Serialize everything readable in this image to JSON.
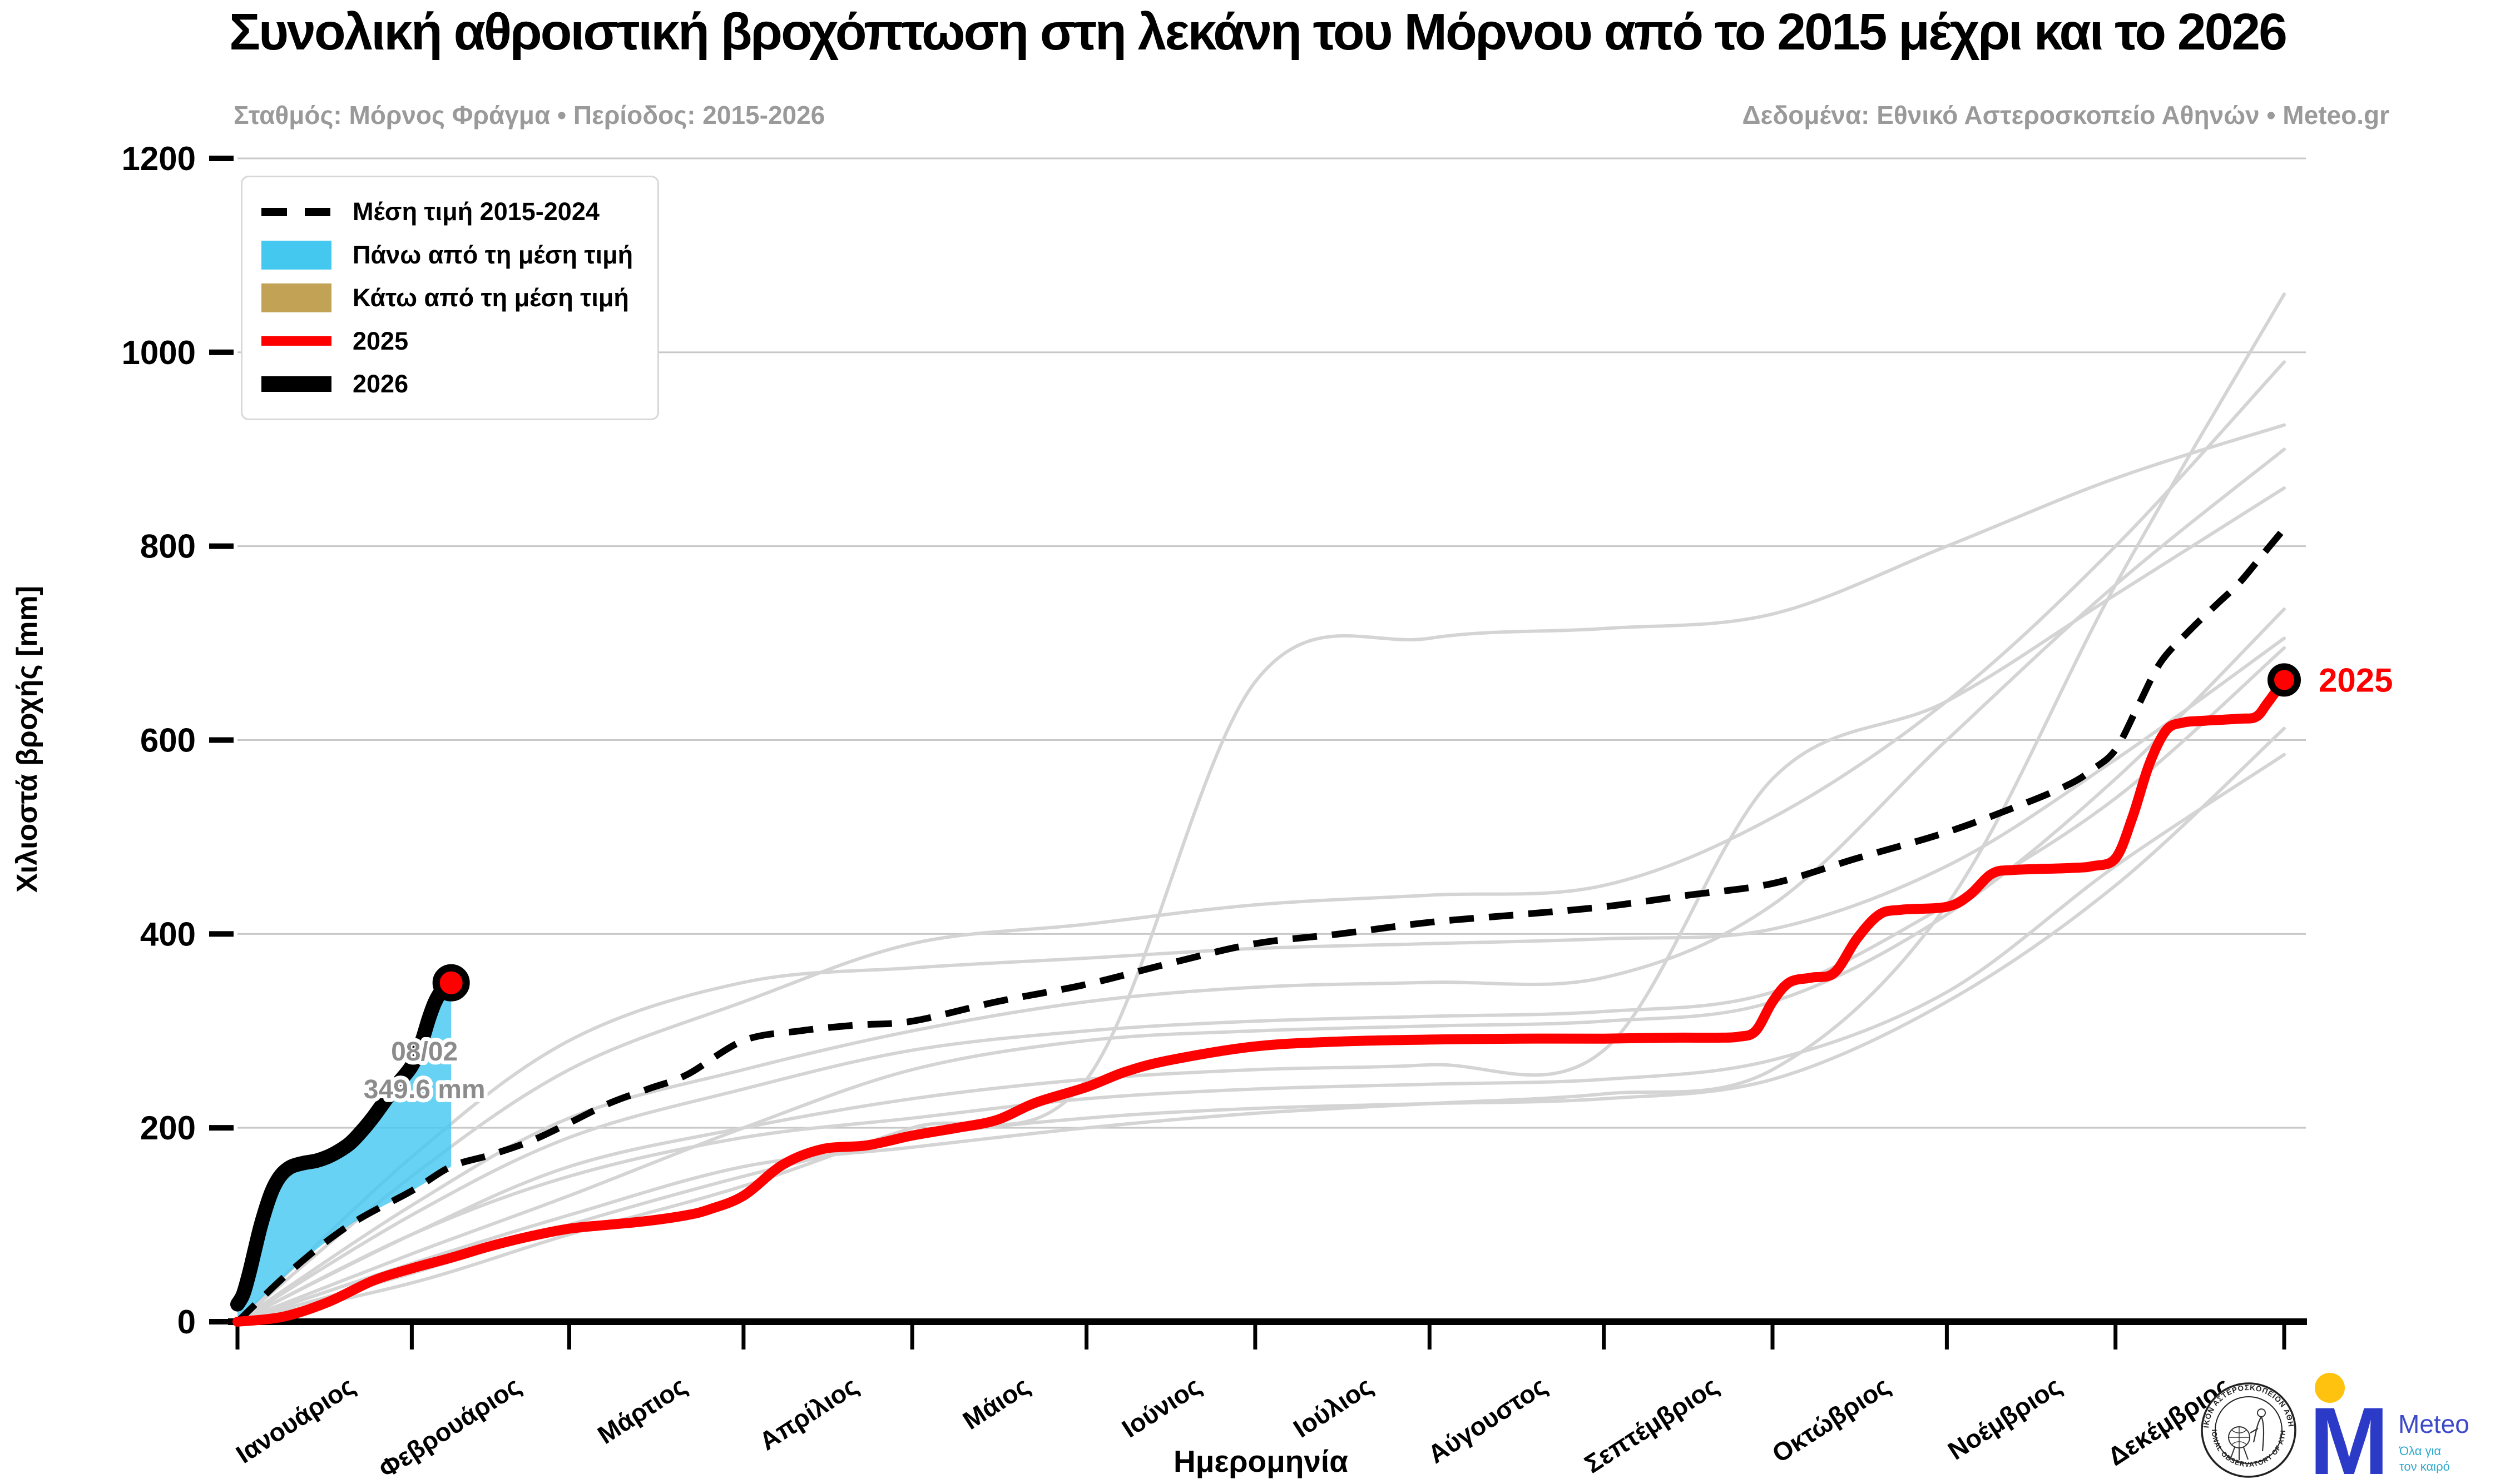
{
  "title": "Συνολική αθροιστική βροχόπτωση στη λεκάνη του Μόρνου από το 2015 μέχρι και το 2026",
  "subtitle_left": "Σταθμός: Μόρνος Φράγμα • Περίοδος: 2015-2026",
  "subtitle_right": "Δεδομένα: Εθνικό Αστεροσκοπείο Αθηνών • Meteo.gr",
  "colors": {
    "red": "#FF0000",
    "black": "#000000",
    "cyan": "#45C8F0",
    "tan": "#C2A356",
    "gray_line": "#D4D4D4",
    "grid": "#C8C8C8",
    "annotation_gray": "#8C8C8C",
    "meteo_blue": "#2B3BC8",
    "meteo_text_blue": "#3D4AC8",
    "meteo_teal": "#2FA8CE",
    "meteo_yellow": "#FFC20E"
  },
  "legend": {
    "items": [
      {
        "label": "Μέση τιμή 2015-2024",
        "swatch": "dashed"
      },
      {
        "label": "Πάνω από τη μέση τιμή",
        "swatch": "fill",
        "color": "#45C8F0"
      },
      {
        "label": "Κάτω από τη μέση τιμή",
        "swatch": "fill",
        "color": "#C2A356"
      },
      {
        "label": "2025",
        "swatch": "line",
        "color": "#FF0000",
        "thickness": 28
      },
      {
        "label": "2026",
        "swatch": "line",
        "color": "#000000",
        "thickness": 44
      }
    ]
  },
  "annotation": {
    "line1": "08/02",
    "line2": "349.6 mm"
  },
  "end_label_2025": "2025",
  "logos": {
    "seal_text_top": "ΕΘΝΙΚΟΝ ΑΣΤΕΡΟΣΚΟΠΕΙΟΝ ΑΘΗΝΩΝ",
    "seal_text_bottom": "NATIONAL OBSERVATORY OF ATHENS",
    "meteo_monogram": "M",
    "meteo_name": "Meteo",
    "meteo_tagline_line1": "Όλα για",
    "meteo_tagline_line2": "τον καιρό"
  },
  "chart_data": {
    "type": "line",
    "title": "Συνολική αθροιστική βροχόπτωση στη λεκάνη του Μόρνου από το 2015 μέχρι και το 2026",
    "xlabel": "Ημερομηνία",
    "ylabel": "Χιλιοστά βροχής [mm]",
    "x_unit": "day_of_year",
    "xlim": [
      0,
      364
    ],
    "ylim": [
      0,
      1200
    ],
    "grid": true,
    "legend_position": "upper-left",
    "y_ticks": [
      0,
      200,
      400,
      600,
      800,
      1000,
      1200
    ],
    "month_start_days": [
      0,
      31,
      59,
      90,
      120,
      151,
      181,
      212,
      243,
      273,
      304,
      334,
      364
    ],
    "month_labels": [
      "Ιανουάριος",
      "Φεβρουάριος",
      "Μάρτιος",
      "Απρίλιος",
      "Μάιος",
      "Ιούνιος",
      "Ιούλιος",
      "Αύγουστος",
      "Σεπτέμβριος",
      "Οκτώβριος",
      "Νοέμβριος",
      "Δεκέμβριος"
    ],
    "series": [
      {
        "name": "Μέση τιμή 2015-2024",
        "style": "dashed",
        "color": "#000000",
        "days": [
          0,
          10,
          20,
          31,
          38,
          45,
          52,
          59,
          66,
          73,
          80,
          90,
          100,
          110,
          120,
          135,
          151,
          166,
          181,
          196,
          212,
          228,
          243,
          258,
          273,
          288,
          304,
          318,
          326,
          330,
          334,
          338,
          342,
          347,
          352,
          356,
          360,
          364
        ],
        "values": [
          0,
          55,
          100,
          135,
          160,
          172,
          186,
          205,
          225,
          240,
          255,
          290,
          300,
          306,
          310,
          330,
          348,
          370,
          390,
          400,
          412,
          420,
          428,
          440,
          452,
          478,
          505,
          535,
          555,
          570,
          590,
          635,
          680,
          712,
          740,
          762,
          790,
          818
        ]
      },
      {
        "name": "2025",
        "style": "solid",
        "color": "#FF0000",
        "end_marker": true,
        "end_label": "2025",
        "days": [
          0,
          8,
          16,
          24,
          31,
          38,
          45,
          52,
          59,
          66,
          73,
          80,
          84,
          90,
          97,
          104,
          112,
          120,
          128,
          135,
          142,
          151,
          158,
          166,
          181,
          196,
          212,
          228,
          243,
          255,
          263,
          267,
          270,
          273,
          276,
          280,
          284,
          288,
          292,
          296,
          304,
          308,
          312,
          316,
          326,
          330,
          334,
          337,
          340,
          343,
          346,
          350,
          356,
          359,
          361,
          364
        ],
        "values": [
          0,
          5,
          20,
          42,
          55,
          66,
          78,
          88,
          96,
          100,
          104,
          110,
          116,
          130,
          162,
          178,
          182,
          192,
          200,
          208,
          226,
          242,
          258,
          270,
          284,
          289,
          291,
          292,
          292,
          293,
          293,
          294,
          300,
          330,
          350,
          355,
          360,
          395,
          420,
          425,
          428,
          440,
          462,
          466,
          468,
          470,
          478,
          520,
          575,
          610,
          618,
          620,
          622,
          624,
          638,
          662
        ]
      },
      {
        "name": "2026",
        "style": "solid",
        "color": "#000000",
        "end_marker": true,
        "last_date": "08/02",
        "last_value_mm": 349.6,
        "days": [
          0,
          1,
          2,
          3,
          4,
          5,
          6,
          7,
          8,
          9,
          10,
          12,
          14,
          16,
          18,
          20,
          22,
          24,
          26,
          28,
          30,
          31,
          32,
          33,
          34,
          35,
          36,
          37,
          38
        ],
        "values": [
          18,
          28,
          48,
          72,
          96,
          116,
          133,
          145,
          153,
          158,
          161,
          164,
          166,
          170,
          176,
          184,
          196,
          210,
          226,
          242,
          256,
          264,
          276,
          293,
          312,
          328,
          339,
          346,
          349.6
        ]
      }
    ],
    "fills": [
      {
        "name": "Πάνω από τη μέση τιμή",
        "color": "#45C8F0",
        "opacity": 0.82,
        "upper_series": "2026",
        "lower_series": "Μέση τιμή 2015-2024",
        "day_range": [
          0,
          38
        ]
      }
    ],
    "past_years": {
      "name": "Έτη 2015-2024",
      "color": "#D4D4D4",
      "month_days": [
        0,
        31,
        59,
        90,
        120,
        151,
        181,
        212,
        243,
        273,
        304,
        334,
        364
      ],
      "years": [
        {
          "values": [
            0,
            60,
            110,
            160,
            180,
            200,
            215,
            225,
            235,
            260,
            430,
            760,
            1060
          ]
        },
        {
          "values": [
            0,
            150,
            260,
            330,
            390,
            410,
            430,
            440,
            450,
            520,
            640,
            800,
            990
          ]
        },
        {
          "values": [
            0,
            40,
            90,
            140,
            200,
            250,
            660,
            705,
            715,
            730,
            800,
            870,
            925
          ]
        },
        {
          "values": [
            0,
            120,
            210,
            260,
            300,
            330,
            345,
            350,
            355,
            430,
            600,
            760,
            900
          ]
        },
        {
          "values": [
            0,
            90,
            160,
            200,
            230,
            250,
            260,
            265,
            280,
            560,
            640,
            750,
            860
          ]
        },
        {
          "values": [
            0,
            70,
            130,
            200,
            260,
            290,
            300,
            305,
            310,
            330,
            420,
            560,
            735
          ]
        },
        {
          "values": [
            0,
            170,
            290,
            350,
            365,
            375,
            385,
            390,
            395,
            405,
            470,
            580,
            705
          ]
        },
        {
          "values": [
            0,
            110,
            190,
            240,
            280,
            300,
            310,
            315,
            320,
            340,
            430,
            540,
            695
          ]
        },
        {
          "values": [
            0,
            50,
            100,
            150,
            190,
            210,
            220,
            225,
            230,
            250,
            330,
            450,
            612
          ]
        },
        {
          "values": [
            0,
            90,
            150,
            190,
            210,
            230,
            240,
            245,
            250,
            270,
            340,
            470,
            585
          ]
        }
      ]
    }
  }
}
